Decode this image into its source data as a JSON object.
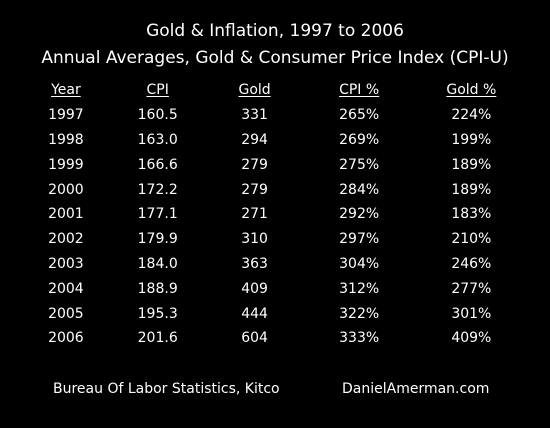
{
  "chart_data": {
    "type": "table",
    "title": "Gold & Inflation, 1997 to 2006",
    "subtitle": "Annual Averages, Gold & Consumer Price Index (CPI-U)",
    "columns": [
      "Year",
      "CPI",
      "Gold",
      "CPI %",
      "Gold %"
    ],
    "rows": [
      [
        "1997",
        "160.5",
        "331",
        "265%",
        "224%"
      ],
      [
        "1998",
        "163.0",
        "294",
        "269%",
        "199%"
      ],
      [
        "1999",
        "166.6",
        "279",
        "275%",
        "189%"
      ],
      [
        "2000",
        "172.2",
        "279",
        "284%",
        "189%"
      ],
      [
        "2001",
        "177.1",
        "271",
        "292%",
        "183%"
      ],
      [
        "2002",
        "179.9",
        "310",
        "297%",
        "210%"
      ],
      [
        "2003",
        "184.0",
        "363",
        "304%",
        "246%"
      ],
      [
        "2004",
        "188.9",
        "409",
        "312%",
        "277%"
      ],
      [
        "2005",
        "195.3",
        "444",
        "322%",
        "301%"
      ],
      [
        "2006",
        "201.6",
        "604",
        "333%",
        "409%"
      ]
    ]
  },
  "footer": {
    "source": "Bureau Of Labor Statistics, Kitco",
    "site": "DanielAmerman.com"
  },
  "colors": {
    "background": "#000000",
    "text": "#ffffff"
  }
}
